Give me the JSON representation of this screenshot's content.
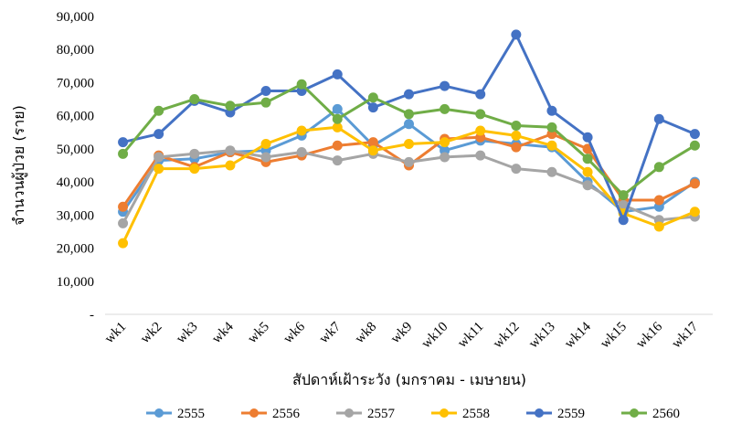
{
  "chart_data": {
    "type": "line",
    "title": "",
    "xlabel": "สัปดาห์เฝ้าระวัง (มกราคม - เมษายน)",
    "ylabel": "จำนวนผู้ป่วย (ราย)",
    "ylim": [
      0,
      90000
    ],
    "yticks": [
      "-",
      "10,000",
      "20,000",
      "30,000",
      "40,000",
      "50,000",
      "60,000",
      "70,000",
      "80,000",
      "90,000"
    ],
    "grid": false,
    "legend_position": "bottom",
    "categories": [
      "wk1",
      "wk2",
      "wk3",
      "wk4",
      "wk5",
      "wk6",
      "wk7",
      "wk8",
      "wk9",
      "wk10",
      "wk11",
      "wk12",
      "wk13",
      "wk14",
      "wk15",
      "wk16",
      "wk17"
    ],
    "series": [
      {
        "name": "2555",
        "color": "#5B9BD5",
        "values": [
          31000,
          46500,
          47000,
          49000,
          49500,
          54000,
          62000,
          51000,
          57500,
          49500,
          52500,
          51500,
          50500,
          40000,
          31000,
          32500,
          40000
        ]
      },
      {
        "name": "2556",
        "color": "#ED7D31",
        "values": [
          32500,
          48000,
          44500,
          49000,
          46000,
          48000,
          51000,
          52000,
          45000,
          53000,
          53500,
          50500,
          54500,
          50000,
          34500,
          34500,
          39500
        ]
      },
      {
        "name": "2557",
        "color": "#A5A5A5",
        "values": [
          27500,
          47500,
          48500,
          49500,
          47500,
          49000,
          46500,
          48500,
          46000,
          47500,
          48000,
          44000,
          43000,
          39000,
          33000,
          28500,
          29500
        ]
      },
      {
        "name": "2558",
        "color": "#FFC000",
        "values": [
          21500,
          44000,
          44000,
          45000,
          51500,
          55500,
          56500,
          49500,
          51500,
          52000,
          55500,
          54000,
          51000,
          43000,
          30500,
          26500,
          31000
        ]
      },
      {
        "name": "2559",
        "color": "#4472C4",
        "values": [
          52000,
          54500,
          64500,
          61000,
          67500,
          67500,
          72500,
          62500,
          66500,
          69000,
          66500,
          84500,
          61500,
          53500,
          28500,
          59000,
          54500
        ]
      },
      {
        "name": "2560",
        "color": "#70AD47",
        "values": [
          48500,
          61500,
          65000,
          63000,
          64000,
          69500,
          59000,
          65500,
          60500,
          62000,
          60500,
          57000,
          56500,
          47000,
          36000,
          44500,
          51000
        ]
      }
    ]
  }
}
